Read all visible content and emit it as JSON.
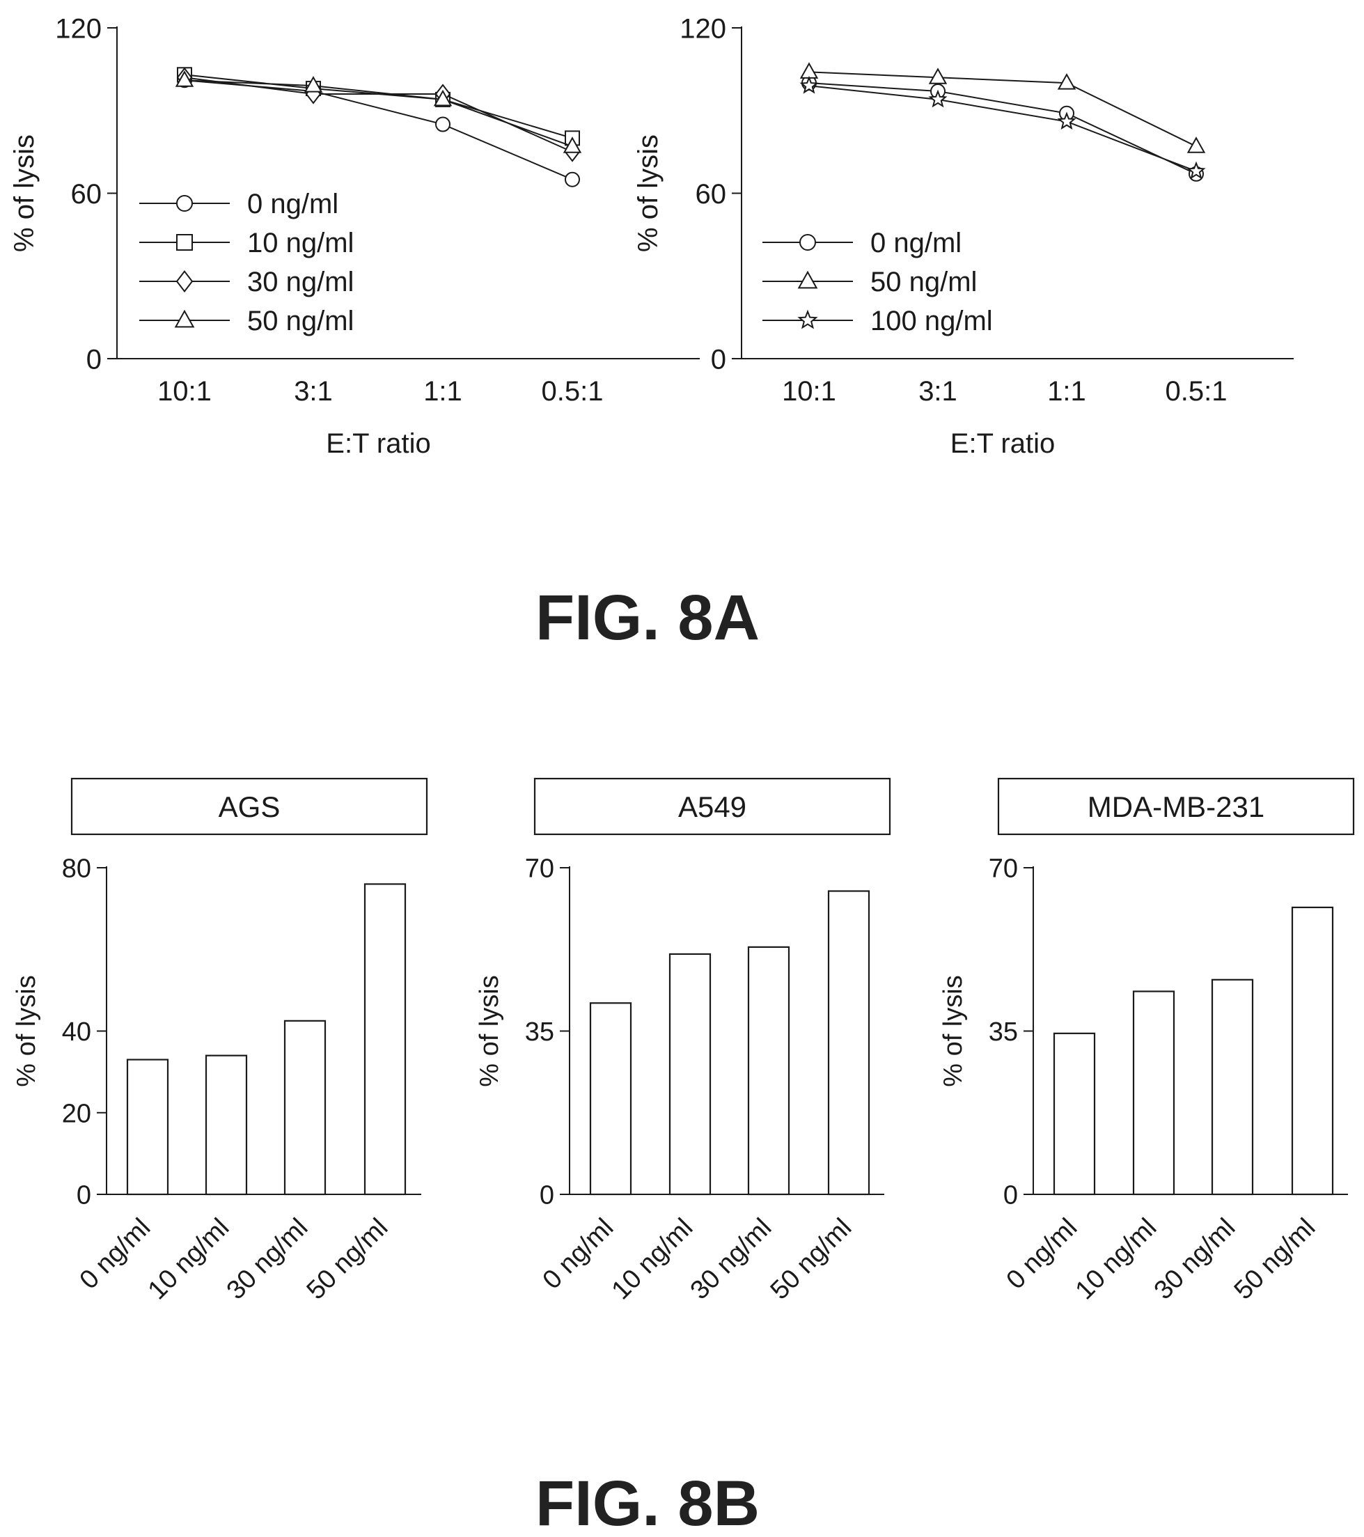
{
  "figure_labels": {
    "fig_8a": "FIG. 8A",
    "fig_8b": "FIG. 8B"
  },
  "chart_data": [
    {
      "type": "line",
      "panel": "8A-left",
      "title": "",
      "xlabel": "E:T ratio",
      "ylabel": "% of lysis",
      "categories": [
        "10:1",
        "3:1",
        "1:1",
        "0.5:1"
      ],
      "ylim": [
        0,
        120
      ],
      "yticks": [
        "0",
        "60",
        "120"
      ],
      "grid": false,
      "legend": "center-left",
      "series": [
        {
          "name": "0 ng/ml",
          "marker": "circle",
          "values": [
            101,
            97,
            85,
            65
          ]
        },
        {
          "name": "10 ng/ml",
          "marker": "square",
          "values": [
            103,
            98,
            94,
            80
          ]
        },
        {
          "name": "30 ng/ml",
          "marker": "diamond",
          "values": [
            102,
            96,
            96,
            75
          ]
        },
        {
          "name": "50 ng/ml",
          "marker": "triangle",
          "values": [
            101,
            99,
            94,
            77
          ]
        }
      ]
    },
    {
      "type": "line",
      "panel": "8A-right",
      "title": "",
      "xlabel": "E:T ratio",
      "ylabel": "% of lysis",
      "categories": [
        "10:1",
        "3:1",
        "1:1",
        "0.5:1"
      ],
      "ylim": [
        0,
        120
      ],
      "yticks": [
        "0",
        "60",
        "120"
      ],
      "grid": false,
      "legend": "bottom-left",
      "series": [
        {
          "name": "0 ng/ml",
          "marker": "circle",
          "values": [
            100,
            97,
            89,
            67
          ]
        },
        {
          "name": "50 ng/ml",
          "marker": "triangle",
          "values": [
            104,
            102,
            100,
            77
          ]
        },
        {
          "name": "100 ng/ml",
          "marker": "star",
          "values": [
            99,
            94,
            86,
            68
          ]
        }
      ]
    },
    {
      "type": "bar",
      "panel": "8B-AGS",
      "title": "AGS",
      "xlabel": "",
      "ylabel": "% of lysis",
      "categories": [
        "0 ng/ml",
        "10 ng/ml",
        "30 ng/ml",
        "50 ng/ml"
      ],
      "values": [
        33,
        34,
        42.5,
        76
      ],
      "ylim": [
        0,
        80
      ],
      "yticks": [
        "0",
        "20",
        "40",
        "80"
      ],
      "grid": false
    },
    {
      "type": "bar",
      "panel": "8B-A549",
      "title": "A549",
      "xlabel": "",
      "ylabel": "% of lysis",
      "categories": [
        "0 ng/ml",
        "10 ng/ml",
        "30 ng/ml",
        "50 ng/ml"
      ],
      "values": [
        41,
        51.5,
        53,
        65
      ],
      "ylim": [
        0,
        70
      ],
      "yticks": [
        "0",
        "35",
        "70"
      ],
      "grid": false
    },
    {
      "type": "bar",
      "panel": "8B-MDA-MB-231",
      "title": "MDA-MB-231",
      "xlabel": "",
      "ylabel": "% of lysis",
      "categories": [
        "0 ng/ml",
        "10 ng/ml",
        "30 ng/ml",
        "50 ng/ml"
      ],
      "values": [
        34.5,
        43.5,
        46,
        61.5
      ],
      "ylim": [
        0,
        70
      ],
      "yticks": [
        "0",
        "35",
        "70"
      ],
      "grid": false
    }
  ]
}
